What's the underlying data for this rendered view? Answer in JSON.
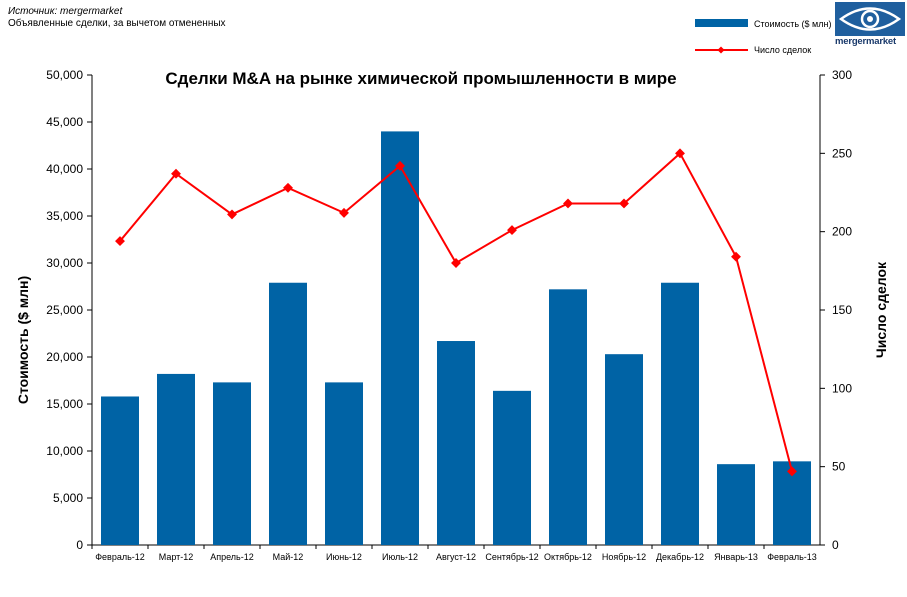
{
  "header": {
    "source": "Источник: mergermarket",
    "note": "Объявленные сделки, за вычетом отмененных",
    "logo_text": "mergermarket"
  },
  "colors": {
    "bar": "#0063a5",
    "line": "#ff0000",
    "logo": "#1f5f9e"
  },
  "chart_data": {
    "type": "bar",
    "title": "Сделки M&A на рынке химической промышленности в мире",
    "categories": [
      "Февраль-12",
      "Март-12",
      "Апрель-12",
      "Май-12",
      "Июнь-12",
      "Июль-12",
      "Август-12",
      "Сентябрь-12",
      "Октябрь-12",
      "Ноябрь-12",
      "Декабрь-12",
      "Январь-13",
      "Февраль-13"
    ],
    "series": [
      {
        "name": "Стоимость ($ млн)",
        "type": "bar",
        "axis": "left",
        "values": [
          15800,
          18200,
          17300,
          27900,
          17300,
          44000,
          21700,
          16400,
          27200,
          20300,
          27900,
          8600,
          8900
        ]
      },
      {
        "name": "Число сделок",
        "type": "line",
        "axis": "right",
        "values": [
          194,
          237,
          211,
          228,
          212,
          242,
          180,
          201,
          218,
          218,
          250,
          184,
          47
        ]
      }
    ],
    "ylabel": "Стоимость  ($ млн)",
    "y2label": "Число сделок",
    "ylim": [
      0,
      50000
    ],
    "y2lim": [
      0,
      300
    ],
    "yticks": [
      "0",
      "5,000",
      "10,000",
      "15,000",
      "20,000",
      "25,000",
      "30,000",
      "35,000",
      "40,000",
      "45,000",
      "50,000"
    ],
    "y2ticks": [
      "0",
      "50",
      "100",
      "150",
      "200",
      "250",
      "300"
    ],
    "legend": "top-right",
    "grid": false
  }
}
